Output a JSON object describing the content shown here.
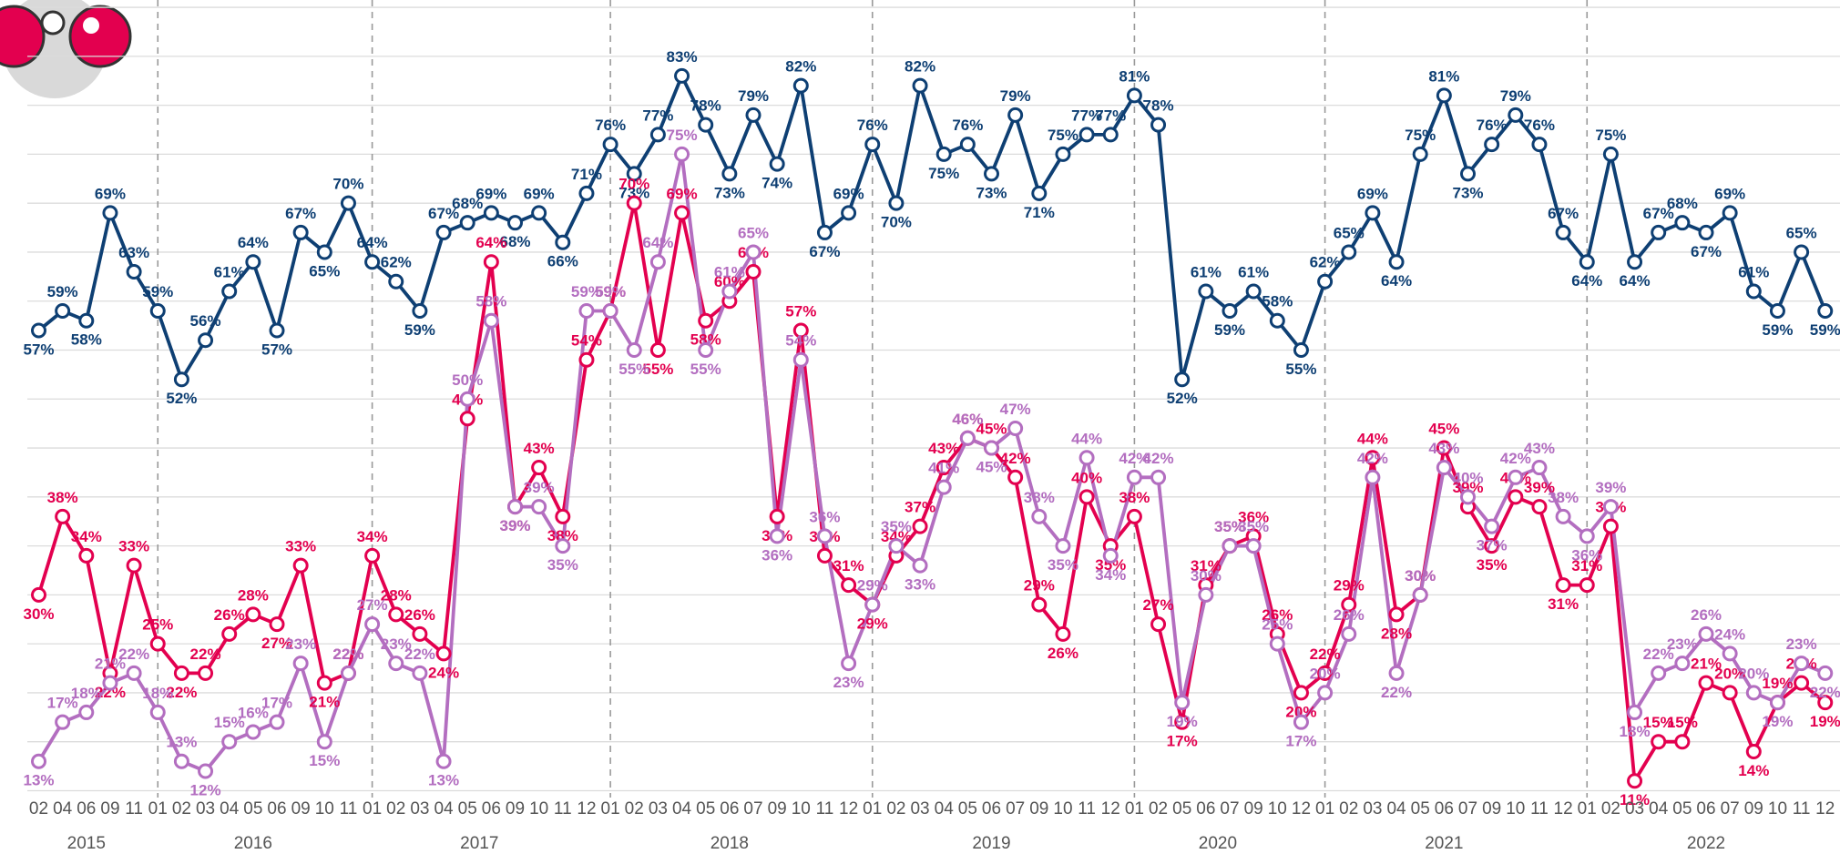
{
  "chart_data": {
    "type": "line",
    "groups": [
      {
        "label": "2015",
        "categories": [
          "02",
          "04",
          "06",
          "09",
          "11"
        ]
      },
      {
        "label": "2016",
        "categories": [
          "01",
          "02",
          "03",
          "04",
          "05",
          "06",
          "09",
          "10",
          "11"
        ]
      },
      {
        "label": "2017",
        "categories": [
          "01",
          "02",
          "03",
          "04",
          "05",
          "06",
          "09",
          "10",
          "11",
          "12"
        ]
      },
      {
        "label": "2018",
        "categories": [
          "01",
          "02",
          "03",
          "04",
          "05",
          "06",
          "07",
          "09",
          "10",
          "11",
          "12"
        ]
      },
      {
        "label": "2019",
        "categories": [
          "01",
          "02",
          "03",
          "04",
          "05",
          "06",
          "07",
          "09",
          "10",
          "11",
          "12"
        ]
      },
      {
        "label": "2020",
        "categories": [
          "01",
          "02",
          "05",
          "06",
          "07",
          "09",
          "10",
          "12"
        ]
      },
      {
        "label": "2021",
        "categories": [
          "01",
          "02",
          "03",
          "04",
          "05",
          "06",
          "07",
          "09",
          "10",
          "11",
          "12"
        ]
      },
      {
        "label": "2022",
        "categories": [
          "01",
          "02",
          "03",
          "04",
          "05",
          "06",
          "07",
          "09",
          "10",
          "11",
          "12"
        ]
      }
    ],
    "ylim": [
      9.3,
      90.75
    ],
    "yticks": [
      10,
      15,
      20,
      25,
      30,
      35,
      40,
      45,
      50,
      55,
      60,
      65,
      70,
      75,
      80,
      85,
      90
    ],
    "grid": true,
    "series": [
      {
        "color": "#0e3f73",
        "values": [
          57,
          59,
          58,
          69,
          63,
          59,
          52,
          56,
          61,
          64,
          57,
          67,
          65,
          70,
          64,
          62,
          59,
          67,
          68,
          69,
          68,
          69,
          66,
          71,
          76,
          73,
          77,
          83,
          78,
          73,
          79,
          74,
          82,
          67,
          69,
          76,
          70,
          82,
          75,
          76,
          73,
          79,
          71,
          75,
          77,
          77,
          81,
          78,
          52,
          61,
          59,
          61,
          58,
          55,
          62,
          65,
          69,
          64,
          75,
          81,
          73,
          76,
          79,
          76,
          67,
          64,
          75,
          64,
          67,
          68,
          67,
          69,
          61,
          59,
          65,
          59
        ],
        "value_labels": [
          "57%",
          "59%",
          "58%",
          "69%",
          "63%",
          "59%",
          "52%",
          "56%",
          "61%",
          "64%",
          "57%",
          "67%",
          "65%",
          "70%",
          "64%",
          "62%",
          "59%",
          "67%",
          "68%",
          "69%",
          "68%",
          "69%",
          "66%",
          "71%",
          "76%",
          "73%",
          "77%",
          "83%",
          "78%",
          "73%",
          "79%",
          "74%",
          "82%",
          "67%",
          "69%",
          "76%",
          "70%",
          "82%",
          "75%",
          "76%",
          "73%",
          "79%",
          "71%",
          "75%",
          "77%",
          "77%",
          "81%",
          "78%",
          "52%",
          "61%",
          "59%",
          "61%",
          "58%",
          "55%",
          "62%",
          "65%",
          "69%",
          "64%",
          "75%",
          "81%",
          "73%",
          "76%",
          "79%",
          "76%",
          "67%",
          "64%",
          "75%",
          "64%",
          "67%",
          "68%",
          "67%",
          "69%",
          "61%",
          "59%",
          "65%",
          "59%"
        ]
      },
      {
        "color": "#e3004f",
        "values": [
          30,
          38,
          34,
          22,
          33,
          25,
          22,
          22,
          26,
          28,
          27,
          33,
          21,
          22,
          34,
          28,
          26,
          24,
          48,
          64,
          39,
          43,
          38,
          54,
          59,
          70,
          55,
          69,
          58,
          60,
          63,
          38,
          57,
          34,
          31,
          29,
          34,
          37,
          43,
          46,
          45,
          42,
          29,
          26,
          40,
          35,
          38,
          27,
          17,
          31,
          35,
          36,
          26,
          20,
          22,
          29,
          44,
          28,
          30,
          45,
          39,
          35,
          40,
          39,
          31,
          31,
          37,
          11,
          15,
          15,
          21,
          20,
          14,
          19,
          21,
          19
        ],
        "value_labels": [
          "30%",
          "38%",
          "34%",
          "22%",
          "33%",
          "25%",
          "22%",
          "22%",
          "26%",
          "28%",
          "27%",
          "33%",
          "21%",
          "22%",
          "34%",
          "28%",
          "26%",
          "24%",
          "48%",
          "64%",
          "39%",
          "43%",
          "38%",
          "54%",
          "59%",
          "70%",
          "55%",
          "69%",
          "58%",
          "60%",
          "63%",
          "38%",
          "57%",
          "34%",
          "31%",
          "29%",
          "34%",
          "37%",
          "43%",
          "46%",
          "45%",
          "42%",
          "29%",
          "26%",
          "40%",
          "35%",
          "38%",
          "27%",
          "17%",
          "31%",
          "35%",
          "36%",
          "26%",
          "20%",
          "22%",
          "29%",
          "44%",
          "28%",
          "30%",
          "45%",
          "39%",
          "35%",
          "40%",
          "39%",
          "31%",
          "31%",
          "37%",
          "11%",
          "15%",
          "15%",
          "21%",
          "20%",
          "14%",
          "19%",
          "21%",
          "19%"
        ]
      },
      {
        "color": "#b36ec0",
        "values": [
          13,
          17,
          18,
          21,
          22,
          18,
          13,
          12,
          15,
          16,
          17,
          23,
          15,
          22,
          27,
          23,
          22,
          13,
          50,
          58,
          39,
          39,
          35,
          59,
          59,
          55,
          64,
          75,
          55,
          61,
          65,
          36,
          54,
          36,
          23,
          29,
          35,
          33,
          41,
          46,
          45,
          47,
          38,
          35,
          44,
          34,
          42,
          42,
          19,
          30,
          35,
          35,
          25,
          17,
          20,
          26,
          42,
          22,
          30,
          43,
          40,
          37,
          42,
          43,
          38,
          36,
          39,
          18,
          22,
          23,
          26,
          24,
          20,
          19,
          23,
          22
        ],
        "value_labels": [
          "13%",
          "17%",
          "18%",
          "21%",
          "22%",
          "18%",
          "13%",
          "12%",
          "15%",
          "16%",
          "17%",
          "23%",
          "15%",
          "22%",
          "27%",
          "23%",
          "22%",
          "13%",
          "50%",
          "58%",
          "39%",
          "39%",
          "35%",
          "59%",
          "59%",
          "55%",
          "64%",
          "75%",
          "55%",
          "61%",
          "65%",
          "36%",
          "54%",
          "36%",
          "23%",
          "29%",
          "35%",
          "33%",
          "41%",
          "46%",
          "45%",
          "47%",
          "38%",
          "35%",
          "44%",
          "34%",
          "42%",
          "42%",
          "19%",
          "30%",
          "35%",
          "35%",
          "25%",
          "17%",
          "20%",
          "26%",
          "42%",
          "22%",
          "30%",
          "43%",
          "40%",
          "37%",
          "42%",
          "43%",
          "38%",
          "36%",
          "39%",
          "18%",
          "22%",
          "23%",
          "26%",
          "24%",
          "20%",
          "19%",
          "23%",
          "22%"
        ]
      }
    ]
  }
}
